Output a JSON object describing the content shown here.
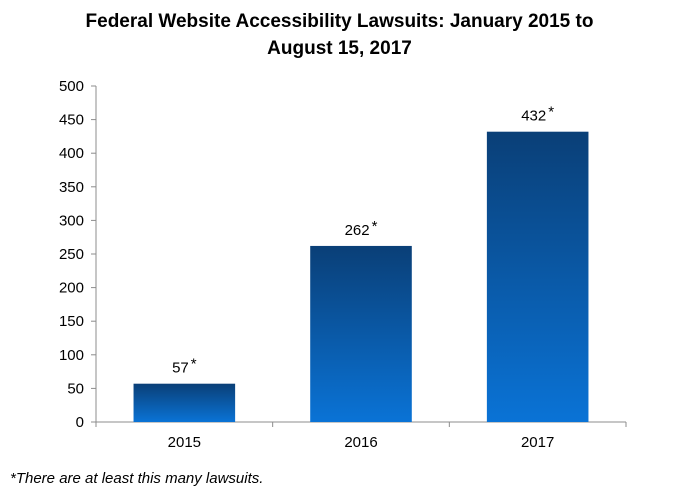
{
  "chart_data": {
    "type": "bar",
    "title_lines": [
      "Federal Website Accessibility Lawsuits: January 2015 to",
      "August 15, 2017"
    ],
    "categories": [
      "2015",
      "2016",
      "2017"
    ],
    "values": [
      57,
      262,
      432
    ],
    "data_labels": [
      "57",
      "262",
      "432"
    ],
    "label_suffix": "*",
    "ylim": [
      0,
      500
    ],
    "yticks": [
      0,
      50,
      100,
      150,
      200,
      250,
      300,
      350,
      400,
      450,
      500
    ],
    "xlabel": "",
    "ylabel": "",
    "grid": false,
    "legend": "none",
    "bar_color_top": "#0a3f77",
    "bar_color_bottom": "#0a73d6"
  },
  "footnote": "*There are at least this many lawsuits."
}
